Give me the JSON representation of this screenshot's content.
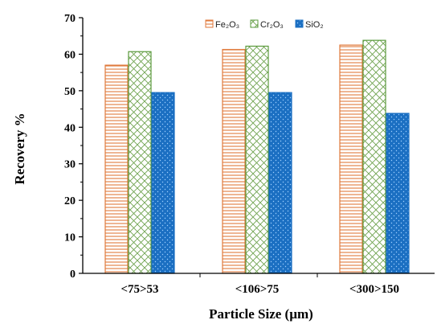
{
  "chart_data": {
    "type": "bar",
    "title": "",
    "xlabel": "Particle Size (µm)",
    "ylabel": "Recovery %",
    "ylim": [
      0,
      70
    ],
    "yticks": [
      0,
      10,
      20,
      30,
      40,
      50,
      60,
      70
    ],
    "categories": [
      "<75>53",
      "<106>75",
      "<300>150"
    ],
    "series": [
      {
        "name": "Fe₂O₃",
        "values": [
          57,
          61.3,
          62.5
        ],
        "color": "#e07a3c",
        "pattern": "horizontal-lines"
      },
      {
        "name": "Cr₂O₃",
        "values": [
          60.7,
          62.2,
          63.8
        ],
        "color": "#5a9a3c",
        "pattern": "crosshatch"
      },
      {
        "name": "SiO₂",
        "values": [
          49.5,
          49.5,
          43.8
        ],
        "color": "#1b6fc2",
        "pattern": "dots"
      }
    ],
    "legend_position": "top-right",
    "grid": false
  }
}
